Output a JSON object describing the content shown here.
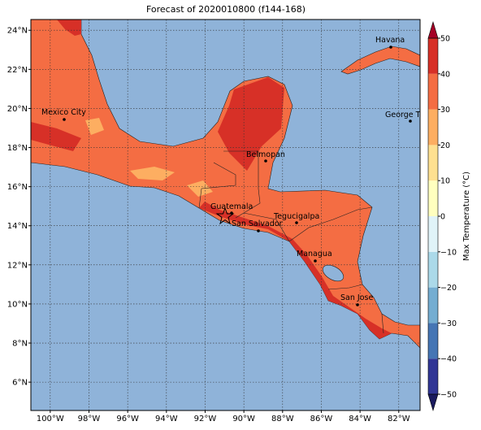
{
  "title": "Forecast of 2020010800 (f144-168)",
  "map": {
    "type": "map",
    "xlim": [
      -101,
      -80.9
    ],
    "ylim": [
      4.55,
      24.55
    ],
    "xticks": [
      {
        "value": -100,
        "label": "100°W"
      },
      {
        "value": -98,
        "label": "98°W"
      },
      {
        "value": -96,
        "label": "96°W"
      },
      {
        "value": -94,
        "label": "94°W"
      },
      {
        "value": -92,
        "label": "92°W"
      },
      {
        "value": -90,
        "label": "90°W"
      },
      {
        "value": -88,
        "label": "88°W"
      },
      {
        "value": -86,
        "label": "86°W"
      },
      {
        "value": -84,
        "label": "84°W"
      },
      {
        "value": -82,
        "label": "82°W"
      }
    ],
    "yticks": [
      {
        "value": 6,
        "label": "6°N"
      },
      {
        "value": 8,
        "label": "8°N"
      },
      {
        "value": 10,
        "label": "10°N"
      },
      {
        "value": 12,
        "label": "12°N"
      },
      {
        "value": 14,
        "label": "14°N"
      },
      {
        "value": 16,
        "label": "16°N"
      },
      {
        "value": 18,
        "label": "18°N"
      },
      {
        "value": 20,
        "label": "20°N"
      },
      {
        "value": 22,
        "label": "22°N"
      },
      {
        "value": 24,
        "label": "24°N"
      }
    ],
    "grid": true,
    "cities": [
      "Mexico City",
      "Havana",
      "George Town",
      "Belmopan",
      "Guatemala",
      "San Salvador",
      "Tegucigalpa",
      "Managua",
      "San Jose"
    ]
  },
  "colorbar": {
    "label": "Max Temperature (°C)",
    "range": [
      -50,
      50
    ],
    "ticks": [
      {
        "value": -50,
        "label": "−50"
      },
      {
        "value": -40,
        "label": "−40"
      },
      {
        "value": -30,
        "label": "−30"
      },
      {
        "value": -20,
        "label": "−20"
      },
      {
        "value": -10,
        "label": "−10"
      },
      0,
      10,
      20,
      30,
      40,
      50
    ],
    "colors": [
      "#313695",
      "#4575b4",
      "#74add1",
      "#abd9e9",
      "#e0f3f8",
      "#ffffbf",
      "#fee090",
      "#fdae61",
      "#f46d43",
      "#d73027"
    ],
    "under": "#1a1a5e",
    "over": "#a50026"
  }
}
